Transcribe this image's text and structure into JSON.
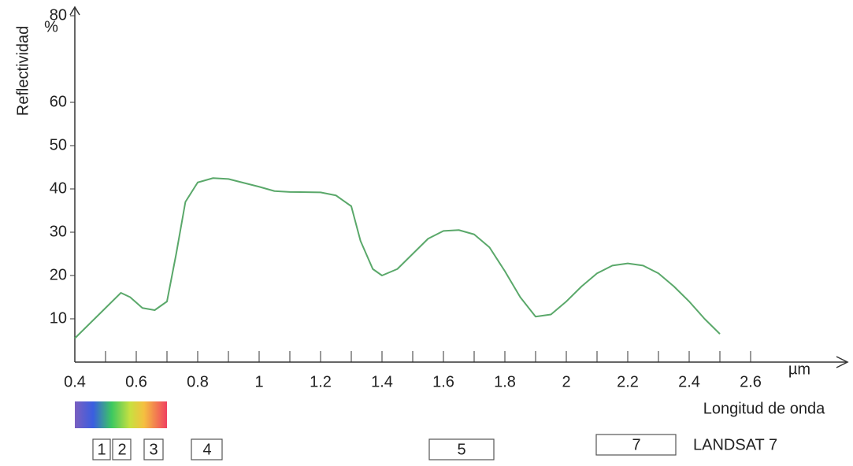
{
  "chart_data": {
    "type": "line",
    "ylabel": "Reflectividad",
    "yunit": "%",
    "xlabel": "Longitud de onda",
    "xunit": "µm",
    "x": [
      0.4,
      0.45,
      0.5,
      0.55,
      0.58,
      0.62,
      0.66,
      0.7,
      0.73,
      0.76,
      0.8,
      0.85,
      0.9,
      1.0,
      1.05,
      1.1,
      1.2,
      1.25,
      1.3,
      1.33,
      1.37,
      1.4,
      1.45,
      1.5,
      1.55,
      1.6,
      1.65,
      1.7,
      1.75,
      1.8,
      1.85,
      1.9,
      1.95,
      2.0,
      2.05,
      2.1,
      2.15,
      2.2,
      2.25,
      2.3,
      2.35,
      2.4,
      2.45,
      2.5
    ],
    "series": [
      {
        "color": "#5aa86a",
        "values": [
          5.5,
          9,
          12.5,
          16,
          15,
          12.5,
          12,
          14,
          25,
          37,
          41.5,
          42.5,
          42.3,
          40.5,
          39.5,
          39.3,
          39.2,
          38.5,
          36,
          28,
          21.5,
          20,
          21.5,
          25,
          28.5,
          30.3,
          30.5,
          29.5,
          26.5,
          21,
          15,
          10.5,
          11,
          14,
          17.5,
          20.5,
          22.3,
          22.8,
          22.3,
          20.5,
          17.5,
          14,
          10,
          6.5
        ]
      }
    ],
    "xlim": [
      0.4,
      2.9
    ],
    "ylim": [
      0,
      82
    ],
    "xticks": [
      0.4,
      0.6,
      0.8,
      1.0,
      1.2,
      1.4,
      1.6,
      1.8,
      2.0,
      2.2,
      2.4,
      2.6
    ],
    "xminorticks": [
      0.5,
      0.7,
      0.9,
      1.1,
      1.3,
      1.5,
      1.7,
      1.9,
      2.1,
      2.3,
      2.5
    ],
    "yticks": [
      10,
      20,
      30,
      40,
      50,
      60,
      80
    ],
    "bands": [
      "1",
      "2",
      "3",
      "4",
      "5",
      "7"
    ],
    "sensor": "LANDSAT 7"
  }
}
